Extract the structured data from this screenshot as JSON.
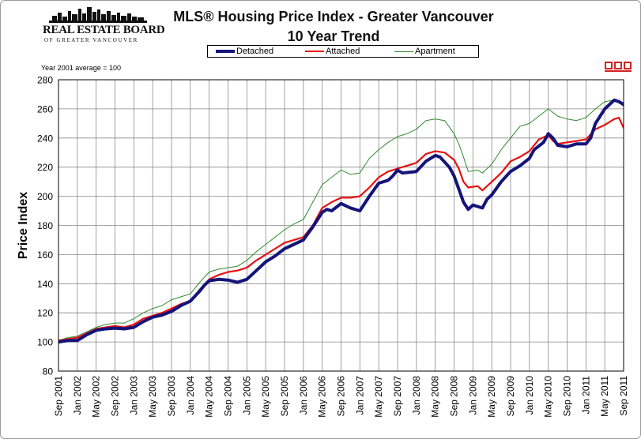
{
  "header": {
    "org_name": "REAL ESTATE BOARD",
    "org_sub": "OF GREATER VANCOUVER",
    "title_line1": "MLS®  Housing Price Index - Greater Vancouver",
    "title_line2": "10 Year Trend"
  },
  "annotation": "Year 2001 average = 100",
  "icons": {
    "org_logo": "skyline-icon",
    "mls_logo": "mls-realtor-icon"
  },
  "chart_data": {
    "type": "line",
    "title": "MLS®  Housing Price Index - Greater Vancouver 10 Year Trend",
    "xlabel": "",
    "ylabel": "Price Index",
    "ylim": [
      80,
      280
    ],
    "yticks": [
      80,
      100,
      120,
      140,
      160,
      180,
      200,
      220,
      240,
      260,
      280
    ],
    "grid": true,
    "legend_position": "top-center",
    "x_start": "Sep 2001",
    "x_end": "Sep 2011",
    "x_ticks": [
      "Sep 2001",
      "Jan 2002",
      "May 2002",
      "Sep 2002",
      "Jan 2003",
      "May 2003",
      "Sep 2003",
      "Jan 2004",
      "May 2004",
      "Sep 2004",
      "Jan 2005",
      "May 2005",
      "Sep 2005",
      "Jan 2006",
      "May 2006",
      "Sep 2006",
      "Jan 2007",
      "May 2007",
      "Sep 2007",
      "Jan 2008",
      "May 2008",
      "Sep 2008",
      "Jan 2009",
      "May 2009",
      "Sep 2009",
      "Jan 2010",
      "May 2010",
      "Sep 2010",
      "Jan 2011",
      "May 2011",
      "Sep 2011"
    ],
    "series": [
      {
        "name": "Detached",
        "color": "#14147a",
        "values": [
          [
            "Sep 2001",
            100
          ],
          [
            "Nov 2001",
            101
          ],
          [
            "Jan 2002",
            101
          ],
          [
            "Mar 2002",
            105
          ],
          [
            "May 2002",
            108
          ],
          [
            "Jul 2002",
            109
          ],
          [
            "Sep 2002",
            109.5
          ],
          [
            "Nov 2002",
            109
          ],
          [
            "Jan 2003",
            110
          ],
          [
            "Mar 2003",
            114
          ],
          [
            "May 2003",
            117
          ],
          [
            "Jul 2003",
            118.5
          ],
          [
            "Sep 2003",
            121
          ],
          [
            "Nov 2003",
            125
          ],
          [
            "Jan 2004",
            128
          ],
          [
            "Mar 2004",
            135
          ],
          [
            "Apr 2004",
            139
          ],
          [
            "May 2004",
            142
          ],
          [
            "Jul 2004",
            143
          ],
          [
            "Sep 2004",
            142.5
          ],
          [
            "Nov 2004",
            141
          ],
          [
            "Jan 2005",
            143
          ],
          [
            "Mar 2005",
            149
          ],
          [
            "May 2005",
            155
          ],
          [
            "Jul 2005",
            159
          ],
          [
            "Sep 2005",
            164
          ],
          [
            "Nov 2005",
            167
          ],
          [
            "Jan 2006",
            170
          ],
          [
            "Mar 2006",
            179
          ],
          [
            "May 2006",
            189
          ],
          [
            "Jun 2006",
            191
          ],
          [
            "Jul 2006",
            190
          ],
          [
            "Sep 2006",
            195
          ],
          [
            "Nov 2006",
            192
          ],
          [
            "Jan 2007",
            190
          ],
          [
            "Mar 2007",
            200
          ],
          [
            "May 2007",
            209
          ],
          [
            "Jul 2007",
            211
          ],
          [
            "Aug 2007",
            214
          ],
          [
            "Sep 2007",
            218
          ],
          [
            "Oct 2007",
            216
          ],
          [
            "Jan 2008",
            217
          ],
          [
            "Mar 2008",
            224
          ],
          [
            "May 2008",
            228
          ],
          [
            "Jun 2008",
            227
          ],
          [
            "Aug 2008",
            220
          ],
          [
            "Sep 2008",
            214
          ],
          [
            "Oct 2008",
            205
          ],
          [
            "Nov 2008",
            196
          ],
          [
            "Dec 2008",
            191
          ],
          [
            "Jan 2009",
            194
          ],
          [
            "Mar 2009",
            192
          ],
          [
            "Apr 2009",
            198
          ],
          [
            "May 2009",
            201
          ],
          [
            "Jul 2009",
            210
          ],
          [
            "Sep 2009",
            217
          ],
          [
            "Nov 2009",
            221
          ],
          [
            "Jan 2010",
            226
          ],
          [
            "Feb 2010",
            232
          ],
          [
            "Apr 2010",
            237
          ],
          [
            "May 2010",
            243
          ],
          [
            "Jun 2010",
            240
          ],
          [
            "Jul 2010",
            235
          ],
          [
            "Sep 2010",
            234
          ],
          [
            "Nov 2010",
            236
          ],
          [
            "Jan 2011",
            236
          ],
          [
            "Feb 2011",
            240
          ],
          [
            "Mar 2011",
            250
          ],
          [
            "May 2011",
            260
          ],
          [
            "Jul 2011",
            266
          ],
          [
            "Aug 2011",
            265
          ],
          [
            "Sep 2011",
            263
          ],
          [
            "Oct 2011",
            265
          ]
        ]
      },
      {
        "name": "Attached",
        "color": "#e81010",
        "values": [
          [
            "Sep 2001",
            101
          ],
          [
            "Nov 2001",
            102
          ],
          [
            "Jan 2002",
            103
          ],
          [
            "Mar 2002",
            106
          ],
          [
            "May 2002",
            109
          ],
          [
            "Jul 2002",
            110
          ],
          [
            "Sep 2002",
            111
          ],
          [
            "Nov 2002",
            110
          ],
          [
            "Jan 2003",
            112
          ],
          [
            "Mar 2003",
            116
          ],
          [
            "May 2003",
            118
          ],
          [
            "Jul 2003",
            120
          ],
          [
            "Sep 2003",
            123
          ],
          [
            "Nov 2003",
            126
          ],
          [
            "Jan 2004",
            128
          ],
          [
            "Mar 2004",
            136
          ],
          [
            "May 2004",
            143
          ],
          [
            "Jul 2004",
            146
          ],
          [
            "Sep 2004",
            148
          ],
          [
            "Nov 2004",
            149
          ],
          [
            "Jan 2005",
            151
          ],
          [
            "Mar 2005",
            156
          ],
          [
            "May 2005",
            160
          ],
          [
            "Jul 2005",
            164
          ],
          [
            "Sep 2005",
            168
          ],
          [
            "Nov 2005",
            170
          ],
          [
            "Jan 2006",
            172
          ],
          [
            "Mar 2006",
            180
          ],
          [
            "May 2006",
            192
          ],
          [
            "Jul 2006",
            196
          ],
          [
            "Sep 2006",
            199
          ],
          [
            "Nov 2006",
            199
          ],
          [
            "Jan 2007",
            200
          ],
          [
            "Mar 2007",
            206
          ],
          [
            "May 2007",
            213
          ],
          [
            "Jul 2007",
            217
          ],
          [
            "Sep 2007",
            219
          ],
          [
            "Nov 2007",
            221
          ],
          [
            "Jan 2008",
            223
          ],
          [
            "Mar 2008",
            229
          ],
          [
            "May 2008",
            231
          ],
          [
            "Jul 2008",
            230
          ],
          [
            "Sep 2008",
            225
          ],
          [
            "Oct 2008",
            219
          ],
          [
            "Nov 2008",
            210
          ],
          [
            "Dec 2008",
            206
          ],
          [
            "Feb 2009",
            207
          ],
          [
            "Mar 2009",
            204
          ],
          [
            "May 2009",
            210
          ],
          [
            "Jul 2009",
            216
          ],
          [
            "Sep 2009",
            224
          ],
          [
            "Nov 2009",
            227
          ],
          [
            "Jan 2010",
            231
          ],
          [
            "Mar 2010",
            239
          ],
          [
            "May 2010",
            242
          ],
          [
            "Jun 2010",
            238
          ],
          [
            "Jul 2010",
            236
          ],
          [
            "Sep 2010",
            237
          ],
          [
            "Nov 2010",
            238
          ],
          [
            "Jan 2011",
            239
          ],
          [
            "Mar 2011",
            246
          ],
          [
            "May 2011",
            249
          ],
          [
            "Jul 2011",
            253
          ],
          [
            "Aug 2011",
            254
          ],
          [
            "Sep 2011",
            247
          ],
          [
            "Oct 2011",
            250
          ]
        ]
      },
      {
        "name": "Apartment",
        "color": "#2e8b2e",
        "values": [
          [
            "Sep 2001",
            101
          ],
          [
            "Nov 2001",
            103
          ],
          [
            "Jan 2002",
            104
          ],
          [
            "Mar 2002",
            107
          ],
          [
            "May 2002",
            110
          ],
          [
            "Jul 2002",
            112
          ],
          [
            "Sep 2002",
            113
          ],
          [
            "Nov 2002",
            113
          ],
          [
            "Jan 2003",
            116
          ],
          [
            "Mar 2003",
            120
          ],
          [
            "May 2003",
            123
          ],
          [
            "Jul 2003",
            125
          ],
          [
            "Sep 2003",
            129
          ],
          [
            "Nov 2003",
            131
          ],
          [
            "Jan 2004",
            133
          ],
          [
            "Mar 2004",
            141
          ],
          [
            "May 2004",
            148
          ],
          [
            "Jul 2004",
            150
          ],
          [
            "Sep 2004",
            151
          ],
          [
            "Nov 2004",
            152
          ],
          [
            "Jan 2005",
            156
          ],
          [
            "Mar 2005",
            162
          ],
          [
            "May 2005",
            167
          ],
          [
            "Jul 2005",
            172
          ],
          [
            "Sep 2005",
            177
          ],
          [
            "Nov 2005",
            181
          ],
          [
            "Jan 2006",
            184
          ],
          [
            "Mar 2006",
            196
          ],
          [
            "May 2006",
            208
          ],
          [
            "Jul 2006",
            213
          ],
          [
            "Sep 2006",
            218
          ],
          [
            "Nov 2006",
            215
          ],
          [
            "Jan 2007",
            216
          ],
          [
            "Mar 2007",
            226
          ],
          [
            "May 2007",
            232
          ],
          [
            "Jul 2007",
            237
          ],
          [
            "Sep 2007",
            241
          ],
          [
            "Nov 2007",
            243
          ],
          [
            "Jan 2008",
            246
          ],
          [
            "Mar 2008",
            252
          ],
          [
            "May 2008",
            253
          ],
          [
            "Jul 2008",
            252
          ],
          [
            "Sep 2008",
            243
          ],
          [
            "Oct 2008",
            236
          ],
          [
            "Nov 2008",
            227
          ],
          [
            "Dec 2008",
            217
          ],
          [
            "Feb 2009",
            218
          ],
          [
            "Mar 2009",
            216
          ],
          [
            "May 2009",
            222
          ],
          [
            "Jul 2009",
            232
          ],
          [
            "Sep 2009",
            240
          ],
          [
            "Nov 2009",
            248
          ],
          [
            "Jan 2010",
            250
          ],
          [
            "Mar 2010",
            255
          ],
          [
            "May 2010",
            260
          ],
          [
            "Jul 2010",
            255
          ],
          [
            "Sep 2010",
            253
          ],
          [
            "Nov 2010",
            252
          ],
          [
            "Jan 2011",
            254
          ],
          [
            "Mar 2011",
            260
          ],
          [
            "May 2011",
            265
          ],
          [
            "Jul 2011",
            266
          ],
          [
            "Aug 2011",
            264
          ],
          [
            "Sep 2011",
            262
          ],
          [
            "Oct 2011",
            263
          ]
        ]
      }
    ]
  }
}
